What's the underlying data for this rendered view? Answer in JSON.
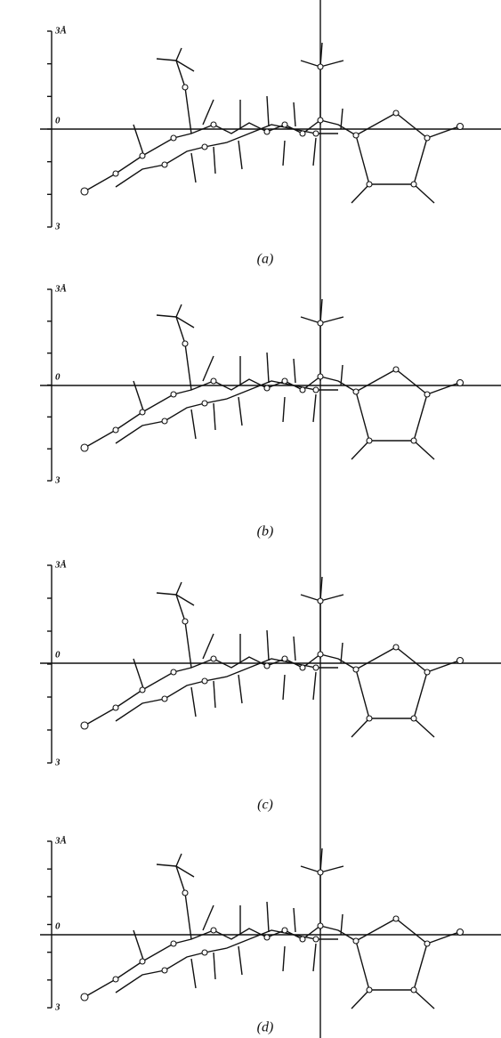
{
  "panels": [
    {
      "label": "(a)",
      "scale_top": "3Å",
      "scale_zero": "0",
      "scale_bottom": "3"
    },
    {
      "label": "(b)",
      "scale_top": "3Å",
      "scale_zero": "0",
      "scale_bottom": "3"
    },
    {
      "label": "(c)",
      "scale_top": "3Å",
      "scale_zero": "0",
      "scale_bottom": "3"
    },
    {
      "label": "(d)",
      "scale_top": "3Å",
      "scale_zero": "0",
      "scale_bottom": "3"
    }
  ]
}
